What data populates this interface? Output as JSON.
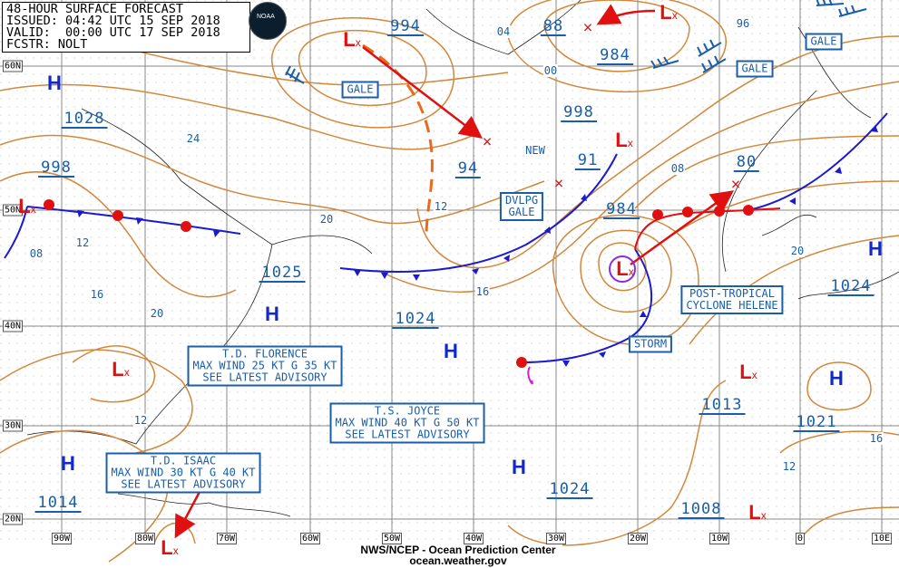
{
  "header": {
    "title": "48-HOUR SURFACE FORECAST",
    "issued": "ISSUED: 04:42 UTC 15 SEP 2018",
    "valid": "VALID:  00:00 UTC 17 SEP 2018",
    "forecaster": "FCSTR: NOLT"
  },
  "logo": {
    "text": "NOAA"
  },
  "footer": {
    "agency": "NWS/NCEP - Ocean Prediction Center",
    "site": "ocean.weather.gov"
  },
  "colors": {
    "isobar": "#d2873a",
    "label": "#1a5ea8",
    "high": "#1228c8",
    "low": "#e01010",
    "cold_front": "#1a1ad0",
    "warm_front": "#e01010"
  },
  "latitudes": [
    "60N",
    "50N",
    "40N",
    "30N",
    "20N"
  ],
  "longitudes": [
    "90W",
    "80W",
    "70W",
    "60W",
    "50W",
    "40W",
    "30W",
    "20W",
    "10W",
    "0",
    "10E"
  ],
  "pressures": [
    "994",
    "88",
    "984",
    "998",
    "91",
    "94",
    "984",
    "80",
    "1028",
    "998",
    "1025",
    "1024",
    "1024",
    "1013",
    "1021",
    "1024",
    "1008",
    "1014"
  ],
  "isobar_labels": [
    "04",
    "00",
    "96",
    "24",
    "12",
    "20",
    "08",
    "12",
    "08",
    "16",
    "20",
    "16",
    "20",
    "12",
    "12",
    "16"
  ],
  "warnings": {
    "gale1": "GALE",
    "gale2": "GALE",
    "gale3": "GALE",
    "dvlpg": "DVLPG\nGALE",
    "storm": "STORM",
    "new": "NEW"
  },
  "systems": {
    "helene": "POST-TROPICAL\nCYCLONE HELENE",
    "florence": "T.D. FLORENCE\nMAX WIND 25 KT G 35 KT\nSEE LATEST ADVISORY",
    "joyce": "T.S. JOYCE\nMAX WIND 40 KT G 50 KT\nSEE LATEST ADVISORY",
    "isaac": "T.D. ISAAC\nMAX WIND 30 KT G 40 KT\nSEE LATEST ADVISORY"
  },
  "symbols": {
    "high": "H",
    "low": "L",
    "low_center": "x",
    "track_end": "×"
  }
}
